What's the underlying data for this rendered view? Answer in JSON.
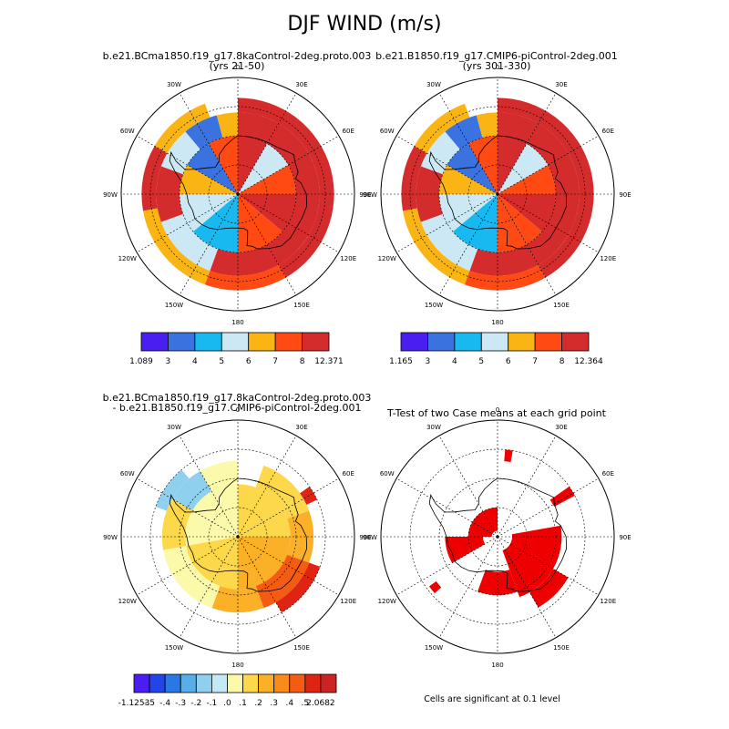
{
  "title": "DJF WIND (m/s)",
  "panels": [
    {
      "title1": "b.e21.BCma1850.f19_g17.8kaControl-2deg.proto.003",
      "title2": "(yrs 21-50)"
    },
    {
      "title1": "b.e21.B1850.f19_g17.CMIP6-piControl-2deg.001",
      "title2": "(yrs 301-330)"
    },
    {
      "title1": "b.e21.BCma1850.f19_g17.8kaControl-2deg.proto.003",
      "title2": "- b.e21.B1850.f19_g17.CMIP6-piControl-2deg.001"
    },
    {
      "title1": "T-Test of two Case means at each grid point",
      "title2": ""
    }
  ],
  "note": "Cells are significant at 0.1 level",
  "lon_labels": [
    "0",
    "30E",
    "60E",
    "90E",
    "120E",
    "150E",
    "180",
    "150W",
    "120W",
    "90W",
    "60W",
    "30W"
  ],
  "colors": {
    "wind": [
      "#4a1ef0",
      "#3a72e0",
      "#18b8f0",
      "#cce8f4",
      "#fab414",
      "#ff4a14",
      "#d42c2c"
    ],
    "diff": [
      "#4a1ef0",
      "#2244e8",
      "#2a78e4",
      "#58aee8",
      "#8ed0ee",
      "#c4e8f4",
      "#fafaaa",
      "#fcd84a",
      "#fcb028",
      "#f88c18",
      "#f45c14",
      "#e02414",
      "#cc2424"
    ],
    "ttest": "#ee0000",
    "coast": "#000000"
  },
  "chart_data": [
    {
      "type": "heatmap",
      "projection": "south-polar-stereographic",
      "title": "b.e21.BCma1850.f19_g17.8kaControl-2deg.proto.003 (yrs 21-50)",
      "colorbar_labels": [
        "1.089",
        "3",
        "4",
        "5",
        "6",
        "7",
        "8",
        "12.371"
      ],
      "colorbar_bounds": [
        1.089,
        3,
        4,
        5,
        6,
        7,
        8,
        12.371
      ],
      "cells": [
        {
          "lon_from": 0,
          "lon_to": 30,
          "lat_from": -90,
          "lat_to": -70,
          "value": 9.5
        },
        {
          "lon_from": 30,
          "lon_to": 60,
          "lat_from": -90,
          "lat_to": -70,
          "value": 5.5
        },
        {
          "lon_from": 60,
          "lon_to": 90,
          "lat_from": -90,
          "lat_to": -70,
          "value": 7.5
        },
        {
          "lon_from": 90,
          "lon_to": 130,
          "lat_from": -90,
          "lat_to": -70,
          "value": 9.5
        },
        {
          "lon_from": 130,
          "lon_to": 180,
          "lat_from": -90,
          "lat_to": -70,
          "value": 7.5
        },
        {
          "lon_from": 180,
          "lon_to": 230,
          "lat_from": -90,
          "lat_to": -70,
          "value": 4.5
        },
        {
          "lon_from": 230,
          "lon_to": 270,
          "lat_from": -90,
          "lat_to": -70,
          "value": 5.5
        },
        {
          "lon_from": 270,
          "lon_to": 300,
          "lat_from": -90,
          "lat_to": -70,
          "value": 6.5
        },
        {
          "lon_from": 300,
          "lon_to": 330,
          "lat_from": -90,
          "lat_to": -70,
          "value": 3.5
        },
        {
          "lon_from": 330,
          "lon_to": 360,
          "lat_from": -90,
          "lat_to": -70,
          "value": 7.5
        },
        {
          "lon_from": 0,
          "lon_to": 30,
          "lat_from": -70,
          "lat_to": -62,
          "value": 10
        },
        {
          "lon_from": 30,
          "lon_to": 90,
          "lat_from": -70,
          "lat_to": -62,
          "value": 10
        },
        {
          "lon_from": 90,
          "lon_to": 150,
          "lat_from": -70,
          "lat_to": -62,
          "value": 10
        },
        {
          "lon_from": 150,
          "lon_to": 200,
          "lat_from": -70,
          "lat_to": -62,
          "value": 8.5
        },
        {
          "lon_from": 200,
          "lon_to": 250,
          "lat_from": -70,
          "lat_to": -62,
          "value": 5.5
        },
        {
          "lon_from": 250,
          "lon_to": 290,
          "lat_from": -70,
          "lat_to": -62,
          "value": 8.5
        },
        {
          "lon_from": 290,
          "lon_to": 320,
          "lat_from": -70,
          "lat_to": -62,
          "value": 5.5
        },
        {
          "lon_from": 320,
          "lon_to": 345,
          "lat_from": -70,
          "lat_to": -62,
          "value": 3.5
        },
        {
          "lon_from": 345,
          "lon_to": 360,
          "lat_from": -70,
          "lat_to": -62,
          "value": 6.5
        },
        {
          "lon_from": 0,
          "lon_to": 150,
          "lat_from": -62,
          "lat_to": -57,
          "value": 10
        },
        {
          "lon_from": 150,
          "lon_to": 200,
          "lat_from": -62,
          "lat_to": -57,
          "value": 7.5
        },
        {
          "lon_from": 200,
          "lon_to": 260,
          "lat_from": -62,
          "lat_to": -57,
          "value": 6.5
        },
        {
          "lon_from": 260,
          "lon_to": 300,
          "lat_from": -62,
          "lat_to": -57,
          "value": 8.5
        },
        {
          "lon_from": 300,
          "lon_to": 340,
          "lat_from": -62,
          "lat_to": -57,
          "value": 6.5
        }
      ]
    },
    {
      "type": "heatmap",
      "projection": "south-polar-stereographic",
      "title": "b.e21.B1850.f19_g17.CMIP6-piControl-2deg.001 (yrs 301-330)",
      "colorbar_labels": [
        "1.165",
        "3",
        "4",
        "5",
        "6",
        "7",
        "8",
        "12.364"
      ],
      "colorbar_bounds": [
        1.165,
        3,
        4,
        5,
        6,
        7,
        8,
        12.364
      ],
      "cells": [
        {
          "lon_from": 0,
          "lon_to": 30,
          "lat_from": -90,
          "lat_to": -70,
          "value": 9.5
        },
        {
          "lon_from": 30,
          "lon_to": 60,
          "lat_from": -90,
          "lat_to": -70,
          "value": 5.5
        },
        {
          "lon_from": 60,
          "lon_to": 90,
          "lat_from": -90,
          "lat_to": -70,
          "value": 7.5
        },
        {
          "lon_from": 90,
          "lon_to": 130,
          "lat_from": -90,
          "lat_to": -70,
          "value": 9.5
        },
        {
          "lon_from": 130,
          "lon_to": 180,
          "lat_from": -90,
          "lat_to": -70,
          "value": 7.5
        },
        {
          "lon_from": 180,
          "lon_to": 230,
          "lat_from": -90,
          "lat_to": -70,
          "value": 4.5
        },
        {
          "lon_from": 230,
          "lon_to": 270,
          "lat_from": -90,
          "lat_to": -70,
          "value": 5.5
        },
        {
          "lon_from": 270,
          "lon_to": 300,
          "lat_from": -90,
          "lat_to": -70,
          "value": 6.5
        },
        {
          "lon_from": 300,
          "lon_to": 330,
          "lat_from": -90,
          "lat_to": -70,
          "value": 3.5
        },
        {
          "lon_from": 330,
          "lon_to": 360,
          "lat_from": -90,
          "lat_to": -70,
          "value": 7.5
        },
        {
          "lon_from": 0,
          "lon_to": 30,
          "lat_from": -70,
          "lat_to": -62,
          "value": 10
        },
        {
          "lon_from": 30,
          "lon_to": 90,
          "lat_from": -70,
          "lat_to": -62,
          "value": 10
        },
        {
          "lon_from": 90,
          "lon_to": 150,
          "lat_from": -70,
          "lat_to": -62,
          "value": 10
        },
        {
          "lon_from": 150,
          "lon_to": 200,
          "lat_from": -70,
          "lat_to": -62,
          "value": 8.5
        },
        {
          "lon_from": 200,
          "lon_to": 250,
          "lat_from": -70,
          "lat_to": -62,
          "value": 5.5
        },
        {
          "lon_from": 250,
          "lon_to": 290,
          "lat_from": -70,
          "lat_to": -62,
          "value": 8.5
        },
        {
          "lon_from": 290,
          "lon_to": 320,
          "lat_from": -70,
          "lat_to": -62,
          "value": 5.5
        },
        {
          "lon_from": 320,
          "lon_to": 345,
          "lat_from": -70,
          "lat_to": -62,
          "value": 3.5
        },
        {
          "lon_from": 345,
          "lon_to": 360,
          "lat_from": -70,
          "lat_to": -62,
          "value": 6.5
        },
        {
          "lon_from": 0,
          "lon_to": 150,
          "lat_from": -62,
          "lat_to": -57,
          "value": 10
        },
        {
          "lon_from": 150,
          "lon_to": 200,
          "lat_from": -62,
          "lat_to": -57,
          "value": 7.5
        },
        {
          "lon_from": 200,
          "lon_to": 260,
          "lat_from": -62,
          "lat_to": -57,
          "value": 6.5
        },
        {
          "lon_from": 260,
          "lon_to": 300,
          "lat_from": -62,
          "lat_to": -57,
          "value": 8.5
        },
        {
          "lon_from": 300,
          "lon_to": 340,
          "lat_from": -62,
          "lat_to": -57,
          "value": 6.5
        }
      ]
    },
    {
      "type": "heatmap",
      "projection": "south-polar-stereographic",
      "title": "b.e21.BCma1850.f19_g17.8kaControl-2deg.proto.003 - b.e21.B1850.f19_g17.CMIP6-piControl-2deg.001",
      "colorbar_labels": [
        "-1.1253",
        "-.5",
        "-.4",
        "-.3",
        "-.2",
        "-.1",
        ".0",
        ".1",
        ".2",
        ".3",
        ".4",
        ".5",
        "2.0682"
      ],
      "colorbar_bounds": [
        -1.1253,
        -0.5,
        -0.4,
        -0.3,
        -0.2,
        -0.1,
        0,
        0.1,
        0.2,
        0.3,
        0.4,
        0.5,
        2.0682
      ],
      "cells": [
        {
          "lon_from": 0,
          "lon_to": 90,
          "lat_from": -90,
          "lat_to": -72,
          "value": 0.15
        },
        {
          "lon_from": 90,
          "lon_to": 180,
          "lat_from": -90,
          "lat_to": -72,
          "value": 0.25
        },
        {
          "lon_from": 180,
          "lon_to": 260,
          "lat_from": -90,
          "lat_to": -72,
          "value": 0.15
        },
        {
          "lon_from": 260,
          "lon_to": 360,
          "lat_from": -90,
          "lat_to": -72,
          "value": 0.05
        },
        {
          "lon_from": 20,
          "lon_to": 70,
          "lat_from": -72,
          "lat_to": -64,
          "value": 0.15
        },
        {
          "lon_from": 70,
          "lon_to": 110,
          "lat_from": -72,
          "lat_to": -64,
          "value": 0.25
        },
        {
          "lon_from": 110,
          "lon_to": 160,
          "lat_from": -72,
          "lat_to": -64,
          "value": 0.45
        },
        {
          "lon_from": 160,
          "lon_to": 200,
          "lat_from": -72,
          "lat_to": -64,
          "value": 0.25
        },
        {
          "lon_from": 200,
          "lon_to": 260,
          "lat_from": -72,
          "lat_to": -64,
          "value": 0.05
        },
        {
          "lon_from": 260,
          "lon_to": 300,
          "lat_from": -72,
          "lat_to": -64,
          "value": 0.15
        },
        {
          "lon_from": 300,
          "lon_to": 330,
          "lat_from": -72,
          "lat_to": -64,
          "value": -0.15
        },
        {
          "lon_from": 330,
          "lon_to": 360,
          "lat_from": -72,
          "lat_to": -64,
          "value": 0.05
        },
        {
          "lon_from": 110,
          "lon_to": 150,
          "lat_from": -64,
          "lat_to": -60,
          "value": 0.55
        },
        {
          "lon_from": 55,
          "lon_to": 65,
          "lat_from": -64,
          "lat_to": -60,
          "value": 0.55
        },
        {
          "lon_from": 290,
          "lon_to": 320,
          "lat_from": -64,
          "lat_to": -60,
          "value": -0.15
        }
      ]
    },
    {
      "type": "heatmap",
      "projection": "south-polar-stereographic",
      "title": "T-Test of two Case means at each grid point",
      "colorbar_labels": [],
      "cells": [
        {
          "lon_from": 80,
          "lon_to": 160,
          "lat_from": -85,
          "lat_to": -68,
          "value": 1
        },
        {
          "lon_from": 160,
          "lon_to": 200,
          "lat_from": -78,
          "lat_to": -70,
          "value": 1
        },
        {
          "lon_from": 240,
          "lon_to": 270,
          "lat_from": -85,
          "lat_to": -72,
          "value": 1
        },
        {
          "lon_from": 270,
          "lon_to": 360,
          "lat_from": -88,
          "lat_to": -80,
          "value": 1
        },
        {
          "lon_from": 120,
          "lon_to": 150,
          "lat_from": -68,
          "lat_to": -62,
          "value": 1
        },
        {
          "lon_from": 55,
          "lon_to": 62,
          "lat_from": -68,
          "lat_to": -60,
          "value": 1
        },
        {
          "lon_from": 5,
          "lon_to": 10,
          "lat_from": -64,
          "lat_to": -60,
          "value": 1
        },
        {
          "lon_from": 228,
          "lon_to": 234,
          "lat_from": -64,
          "lat_to": -61,
          "value": 1
        }
      ]
    }
  ]
}
